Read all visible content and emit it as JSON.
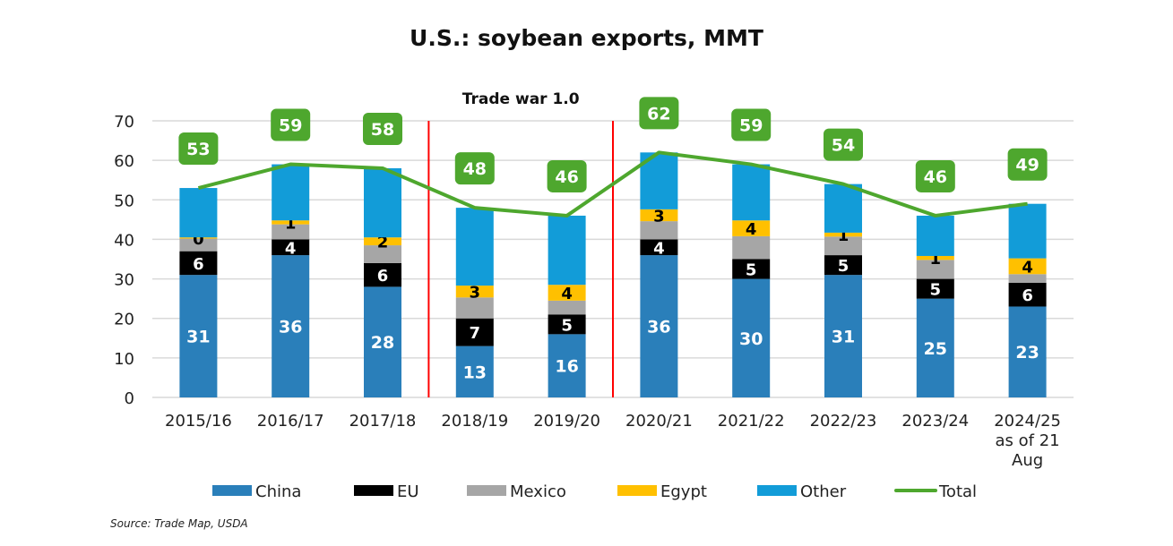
{
  "chart_data": {
    "type": "bar",
    "stacked": true,
    "title": "U.S.: soybean exports, MMT",
    "annotation": "Trade war 1.0",
    "source": "Source: Trade Map, USDA",
    "ylim": [
      0,
      70
    ],
    "yticks": [
      0,
      10,
      20,
      30,
      40,
      50,
      60,
      70
    ],
    "grid": true,
    "legend_position": "bottom",
    "categories": [
      "2015/16",
      "2016/17",
      "2017/18",
      "2018/19",
      "2019/20",
      "2020/21",
      "2021/22",
      "2022/23",
      "2023/24",
      "2024/25 as of 21 Aug"
    ],
    "category_lines": [
      [
        "2015/16"
      ],
      [
        "2016/17"
      ],
      [
        "2017/18"
      ],
      [
        "2018/19"
      ],
      [
        "2019/20"
      ],
      [
        "2020/21"
      ],
      [
        "2021/22"
      ],
      [
        "2022/23"
      ],
      [
        "2023/24"
      ],
      [
        "2024/25",
        "as of 21",
        "Aug"
      ]
    ],
    "trade_war_span": [
      "2018/19",
      "2019/20"
    ],
    "series": [
      {
        "name": "China",
        "color": "#2a7fba",
        "label_color": "#ffffff",
        "values": [
          31,
          36,
          28,
          13,
          16,
          36,
          30,
          31,
          25,
          23
        ],
        "labels": [
          "31",
          "36",
          "28",
          "13",
          "16",
          "36",
          "30",
          "31",
          "25",
          "23"
        ]
      },
      {
        "name": "EU",
        "color": "#000000",
        "label_color": "#ffffff",
        "values": [
          6,
          4,
          6,
          7,
          5,
          4,
          5,
          5,
          5,
          6
        ],
        "labels": [
          "6",
          "4",
          "6",
          "7",
          "5",
          "4",
          "5",
          "5",
          "5",
          "6"
        ]
      },
      {
        "name": "Mexico",
        "color": "#a6a6a6",
        "label_color": "#000000",
        "values": [
          3.2,
          3.8,
          4.5,
          5.3,
          3.5,
          4.6,
          5.8,
          4.7,
          4.8,
          2.2
        ],
        "labels": [
          "",
          "",
          "",
          "",
          "",
          "",
          "",
          "",
          "",
          ""
        ]
      },
      {
        "name": "Egypt",
        "color": "#ffc000",
        "label_color": "#000000",
        "values": [
          0.3,
          1,
          2,
          3,
          4,
          3,
          4,
          1,
          1,
          4
        ],
        "labels": [
          "0",
          "1",
          "2",
          "3",
          "4",
          "3",
          "4",
          "1",
          "1",
          "4"
        ]
      },
      {
        "name": "Other",
        "color": "#129cd8",
        "label_color": "#ffffff",
        "values": [
          12.5,
          14.2,
          17.5,
          19.7,
          17.5,
          14.4,
          14.2,
          12.3,
          10.2,
          13.8
        ],
        "labels": [
          "",
          "",
          "",
          "",
          "",
          "",
          "",
          "",
          "",
          ""
        ]
      }
    ],
    "total": {
      "name": "Total",
      "color": "#4ea72e",
      "values": [
        53,
        59,
        58,
        48,
        46,
        62,
        59,
        54,
        46,
        49
      ]
    }
  }
}
